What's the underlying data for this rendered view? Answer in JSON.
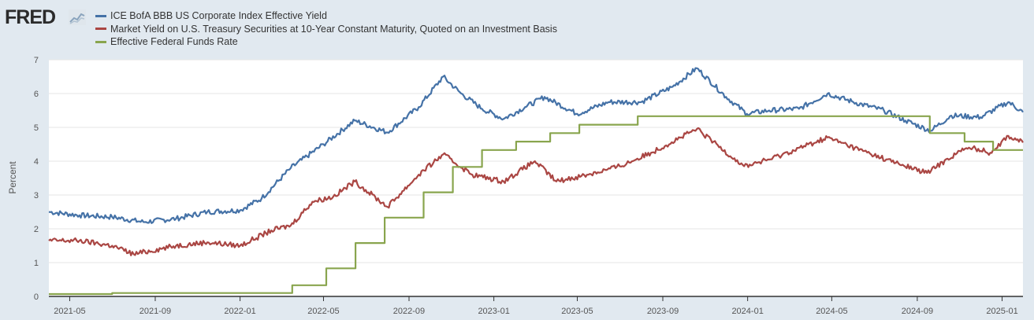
{
  "brand": {
    "logo_text": "FRED",
    "logo_icon": "line-chart-icon"
  },
  "chart_data": {
    "type": "line",
    "title": "",
    "xlabel": "",
    "ylabel": "Percent",
    "ylim": [
      0,
      7
    ],
    "yticks": [
      0,
      1,
      2,
      3,
      4,
      5,
      6,
      7
    ],
    "xrange": [
      "2021-04-01",
      "2025-01-31"
    ],
    "xticks": [
      "2021-05",
      "2021-09",
      "2022-01",
      "2022-05",
      "2022-09",
      "2023-01",
      "2023-05",
      "2023-09",
      "2024-01",
      "2024-05",
      "2024-09",
      "2025-01"
    ],
    "grid": true,
    "legend_position": "top-left",
    "series": [
      {
        "name": "ICE BofA BBB US Corporate Index Effective Yield",
        "color": "#4572a7",
        "style": "line",
        "points": [
          [
            "2021-04-01",
            2.5
          ],
          [
            "2021-05-15",
            2.4
          ],
          [
            "2021-07-01",
            2.35
          ],
          [
            "2021-08-15",
            2.2
          ],
          [
            "2021-10-01",
            2.3
          ],
          [
            "2021-11-15",
            2.5
          ],
          [
            "2022-01-01",
            2.55
          ],
          [
            "2022-02-01",
            2.9
          ],
          [
            "2022-03-15",
            3.8
          ],
          [
            "2022-05-01",
            4.5
          ],
          [
            "2022-06-15",
            5.2
          ],
          [
            "2022-08-01",
            4.85
          ],
          [
            "2022-09-15",
            5.6
          ],
          [
            "2022-10-20",
            6.5
          ],
          [
            "2022-11-15",
            6.0
          ],
          [
            "2022-12-15",
            5.55
          ],
          [
            "2023-01-15",
            5.25
          ],
          [
            "2023-02-15",
            5.6
          ],
          [
            "2023-03-15",
            5.9
          ],
          [
            "2023-05-01",
            5.4
          ],
          [
            "2023-06-15",
            5.75
          ],
          [
            "2023-08-01",
            5.75
          ],
          [
            "2023-09-15",
            6.2
          ],
          [
            "2023-10-20",
            6.75
          ],
          [
            "2023-12-01",
            5.9
          ],
          [
            "2023-12-31",
            5.4
          ],
          [
            "2024-02-01",
            5.5
          ],
          [
            "2024-03-15",
            5.55
          ],
          [
            "2024-04-25",
            6.0
          ],
          [
            "2024-06-01",
            5.75
          ],
          [
            "2024-07-15",
            5.5
          ],
          [
            "2024-08-15",
            5.2
          ],
          [
            "2024-09-20",
            4.9
          ],
          [
            "2024-10-20",
            5.35
          ],
          [
            "2024-12-01",
            5.3
          ],
          [
            "2025-01-10",
            5.75
          ],
          [
            "2025-01-31",
            5.45
          ]
        ]
      },
      {
        "name": "Market Yield on U.S. Treasury Securities at 10-Year Constant Maturity, Quoted on an Investment Basis",
        "color": "#aa4643",
        "style": "line",
        "points": [
          [
            "2021-04-01",
            1.65
          ],
          [
            "2021-05-15",
            1.65
          ],
          [
            "2021-07-01",
            1.5
          ],
          [
            "2021-08-01",
            1.25
          ],
          [
            "2021-10-01",
            1.5
          ],
          [
            "2021-11-15",
            1.6
          ],
          [
            "2022-01-01",
            1.5
          ],
          [
            "2022-02-15",
            1.95
          ],
          [
            "2022-03-15",
            2.1
          ],
          [
            "2022-04-15",
            2.8
          ],
          [
            "2022-05-15",
            2.95
          ],
          [
            "2022-06-15",
            3.4
          ],
          [
            "2022-08-01",
            2.65
          ],
          [
            "2022-09-15",
            3.6
          ],
          [
            "2022-10-20",
            4.2
          ],
          [
            "2022-12-01",
            3.6
          ],
          [
            "2023-01-15",
            3.4
          ],
          [
            "2023-03-01",
            4.0
          ],
          [
            "2023-04-01",
            3.4
          ],
          [
            "2023-05-15",
            3.6
          ],
          [
            "2023-07-01",
            3.85
          ],
          [
            "2023-08-15",
            4.25
          ],
          [
            "2023-10-20",
            4.95
          ],
          [
            "2023-12-27",
            3.85
          ],
          [
            "2024-02-01",
            4.05
          ],
          [
            "2024-04-25",
            4.7
          ],
          [
            "2024-06-15",
            4.3
          ],
          [
            "2024-08-01",
            3.95
          ],
          [
            "2024-09-15",
            3.65
          ],
          [
            "2024-11-01",
            4.3
          ],
          [
            "2024-11-20",
            4.4
          ],
          [
            "2024-12-15",
            4.25
          ],
          [
            "2025-01-10",
            4.75
          ],
          [
            "2025-01-31",
            4.55
          ]
        ]
      },
      {
        "name": "Effective Federal Funds Rate",
        "color": "#89a54e",
        "style": "step",
        "points": [
          [
            "2021-04-01",
            0.07
          ],
          [
            "2021-07-01",
            0.1
          ],
          [
            "2022-03-17",
            0.33
          ],
          [
            "2022-05-05",
            0.83
          ],
          [
            "2022-06-16",
            1.58
          ],
          [
            "2022-07-28",
            2.33
          ],
          [
            "2022-09-22",
            3.08
          ],
          [
            "2022-11-03",
            3.83
          ],
          [
            "2022-12-15",
            4.33
          ],
          [
            "2023-02-02",
            4.58
          ],
          [
            "2023-03-23",
            4.83
          ],
          [
            "2023-05-04",
            5.08
          ],
          [
            "2023-07-27",
            5.33
          ],
          [
            "2024-09-19",
            4.83
          ],
          [
            "2024-11-08",
            4.58
          ],
          [
            "2024-12-19",
            4.33
          ],
          [
            "2025-01-31",
            4.33
          ]
        ]
      }
    ]
  }
}
